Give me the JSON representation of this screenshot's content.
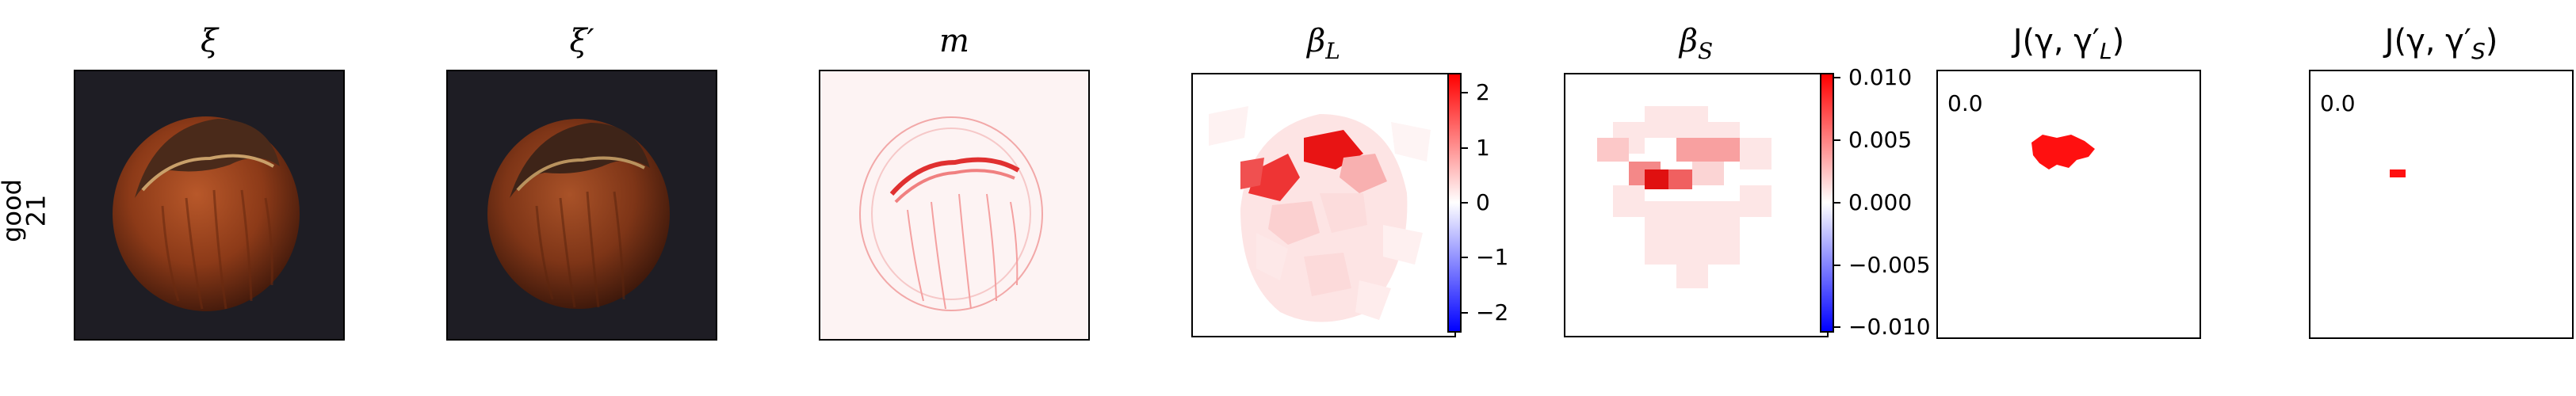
{
  "row_label": {
    "line1": "good",
    "line2": "21"
  },
  "panels": {
    "xi": {
      "title": "ξ"
    },
    "xi_prime": {
      "title": "ξ′"
    },
    "m": {
      "title": "m"
    },
    "beta_L": {
      "title": "β",
      "sub": "L"
    },
    "beta_S": {
      "title": "β",
      "sub": "S"
    },
    "J_L": {
      "title_prefix": "J(γ, γ′",
      "sub": "L",
      "title_suffix": ")",
      "value": "0.0"
    },
    "J_S": {
      "title_prefix": "J(γ, γ′",
      "sub": "S",
      "title_suffix": ")",
      "value": "0.0"
    }
  },
  "colorbars": {
    "beta_L": {
      "ticks": [
        "2",
        "1",
        "0",
        "−1",
        "−2"
      ],
      "range": [
        -2.4,
        2.4
      ],
      "values": [
        2,
        1,
        0,
        -1,
        -2
      ]
    },
    "beta_S": {
      "ticks": [
        "0.010",
        "0.005",
        "0.000",
        "−0.005",
        "−0.010"
      ],
      "range": [
        -0.0105,
        0.0105
      ],
      "values": [
        0.01,
        0.005,
        0.0,
        -0.005,
        -0.01
      ]
    }
  },
  "colors": {
    "positive": "#ff0000",
    "neutral": "#ffffff",
    "negative": "#0000ff",
    "dark_bg": "#1e1d24"
  }
}
